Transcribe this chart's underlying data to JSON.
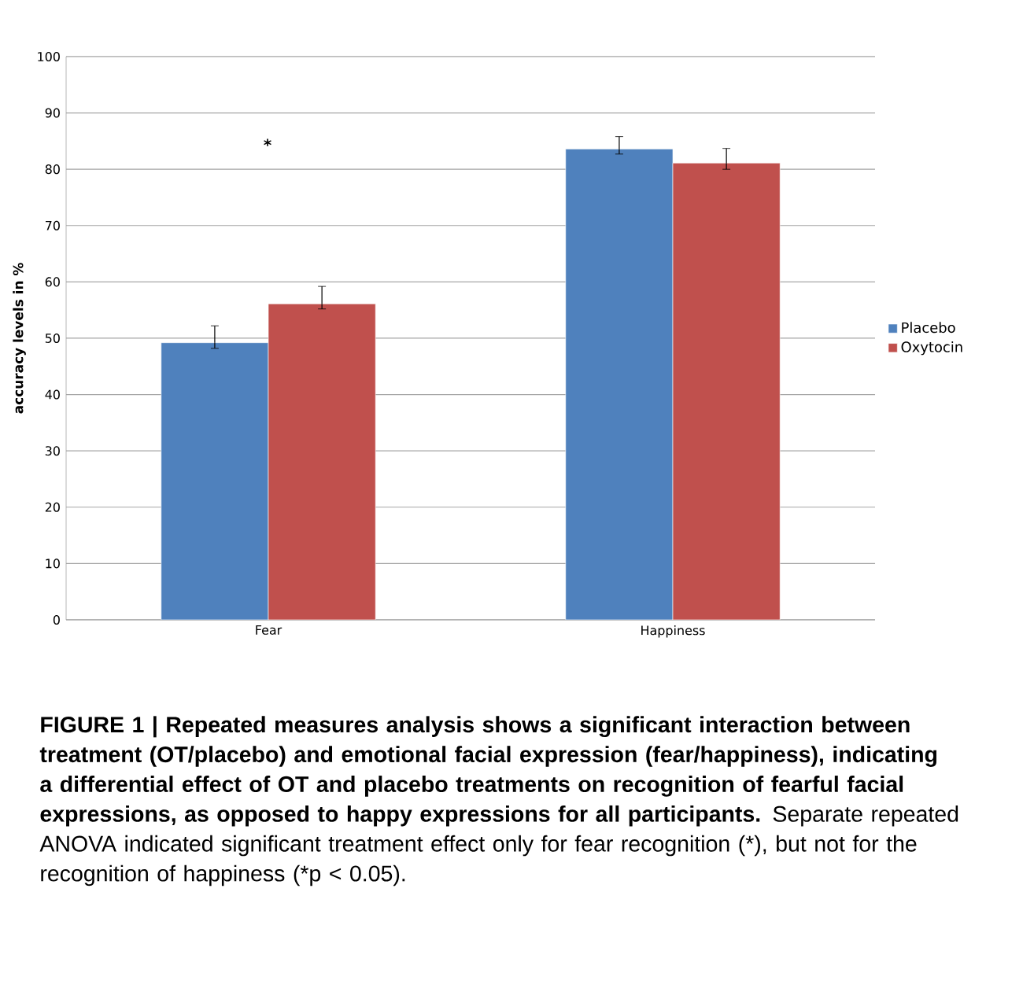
{
  "chart_data": {
    "type": "bar",
    "ylabel": "accuracy levels in %",
    "categories": [
      "Fear",
      "Happiness"
    ],
    "series": [
      {
        "name": "Placebo",
        "color": "#4f81bd",
        "values": [
          49.2,
          83.6
        ],
        "errors": [
          [
            48.2,
            52.2
          ],
          [
            82.7,
            85.8
          ]
        ]
      },
      {
        "name": "Oxytocin",
        "color": "#c0504d",
        "values": [
          56.1,
          81.1
        ],
        "errors": [
          [
            55.2,
            59.2
          ],
          [
            80.0,
            83.7
          ]
        ]
      }
    ],
    "ylim": [
      0,
      100
    ],
    "yticks": [
      0,
      10,
      20,
      30,
      40,
      50,
      60,
      70,
      80,
      90,
      100
    ],
    "grid": "y",
    "legend": "right",
    "annotations": [
      "*",
      "**FIGURE 1 | Repeated measures analysis shows a significant interaction between treatment (OT/placebo) and emotional facial expression (fear/happiness), indicating a differential effect of OT and placebo treatments on recognition of fearful facial expressions, as opposed to happy expressions for all participants.** Separate repeated ANOVA indicated significant treatment effect only for fear recognition (*), but not for the recognition of happiness (*p < 0.05)."
    ]
  }
}
